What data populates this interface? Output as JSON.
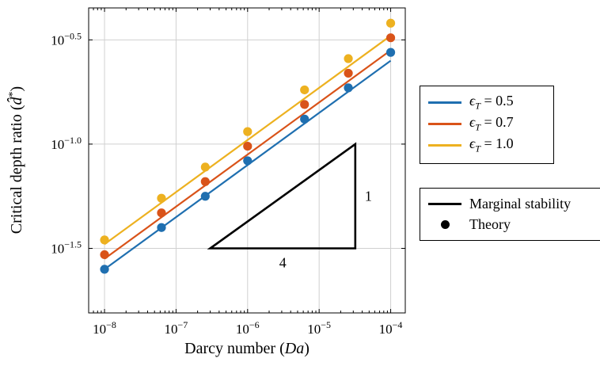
{
  "chart_data": {
    "type": "line",
    "xscale": "log",
    "yscale": "log",
    "xlim": [
      6e-09,
      0.00016
    ],
    "ylim": [
      0.0155,
      0.45
    ],
    "grid": true,
    "xlabel": "Darcy number (Da)",
    "ylabel": "Critical depth ratio (d̂*)",
    "x_ticks": [
      1e-08,
      1e-07,
      1e-06,
      1e-05,
      0.0001
    ],
    "x_tick_labels": [
      {
        "base": "10",
        "exp": "−8"
      },
      {
        "base": "10",
        "exp": "−7"
      },
      {
        "base": "10",
        "exp": "−6"
      },
      {
        "base": "10",
        "exp": "−5"
      },
      {
        "base": "10",
        "exp": "−4"
      }
    ],
    "y_ticks": [
      -1.5,
      -1.0,
      -0.5
    ],
    "y_tick_labels": [
      {
        "base": "10",
        "exp": "−1.5"
      },
      {
        "base": "10",
        "exp": "−1.0"
      },
      {
        "base": "10",
        "exp": "−0.5"
      }
    ],
    "series": [
      {
        "name": "ε_T = 0.5",
        "symbol": "ϵ",
        "sub": "T",
        "value_label": "= 0.5",
        "color": "#1f6fb0",
        "line": {
          "x": [
            1e-08,
            0.0001
          ],
          "y": [
            0.0251,
            0.2512
          ]
        },
        "points": {
          "x": [
            1e-08,
            6.25e-08,
            2.56e-07,
            1e-06,
            6.25e-06,
            2.56e-05,
            0.0001
          ],
          "y": [
            0.0251,
            0.0398,
            0.0562,
            0.0832,
            0.1318,
            0.1862,
            0.2754
          ]
        }
      },
      {
        "name": "ε_T = 0.7",
        "symbol": "ϵ",
        "sub": "T",
        "value_label": "= 0.7",
        "color": "#d95319",
        "line": {
          "x": [
            1e-08,
            0.0001
          ],
          "y": [
            0.0282,
            0.2818
          ]
        },
        "points": {
          "x": [
            1e-08,
            6.25e-08,
            2.56e-07,
            1e-06,
            6.25e-06,
            2.56e-05,
            0.0001
          ],
          "y": [
            0.0295,
            0.0468,
            0.0661,
            0.0977,
            0.1549,
            0.2188,
            0.3236
          ]
        }
      },
      {
        "name": "ε_T = 1.0",
        "symbol": "ϵ",
        "sub": "T",
        "value_label": "= 1.0",
        "color": "#edb120",
        "line": {
          "x": [
            1e-08,
            0.0001
          ],
          "y": [
            0.0331,
            0.3311
          ]
        },
        "points": {
          "x": [
            1e-08,
            6.25e-08,
            2.56e-07,
            1e-06,
            6.25e-06,
            2.56e-05,
            0.0001
          ],
          "y": [
            0.0347,
            0.055,
            0.0776,
            0.1148,
            0.182,
            0.257,
            0.3802
          ]
        }
      }
    ],
    "slope_triangle": {
      "x": [
        3e-07,
        3.2e-05,
        3.2e-05
      ],
      "y": [
        0.03162,
        0.03162,
        0.1
      ],
      "run_label": "4",
      "rise_label": "1"
    },
    "legend_style": [
      {
        "label": "Marginal stability",
        "kind": "line"
      },
      {
        "label": "Theory",
        "kind": "marker"
      }
    ],
    "legend_placement": "right, outside plot"
  }
}
